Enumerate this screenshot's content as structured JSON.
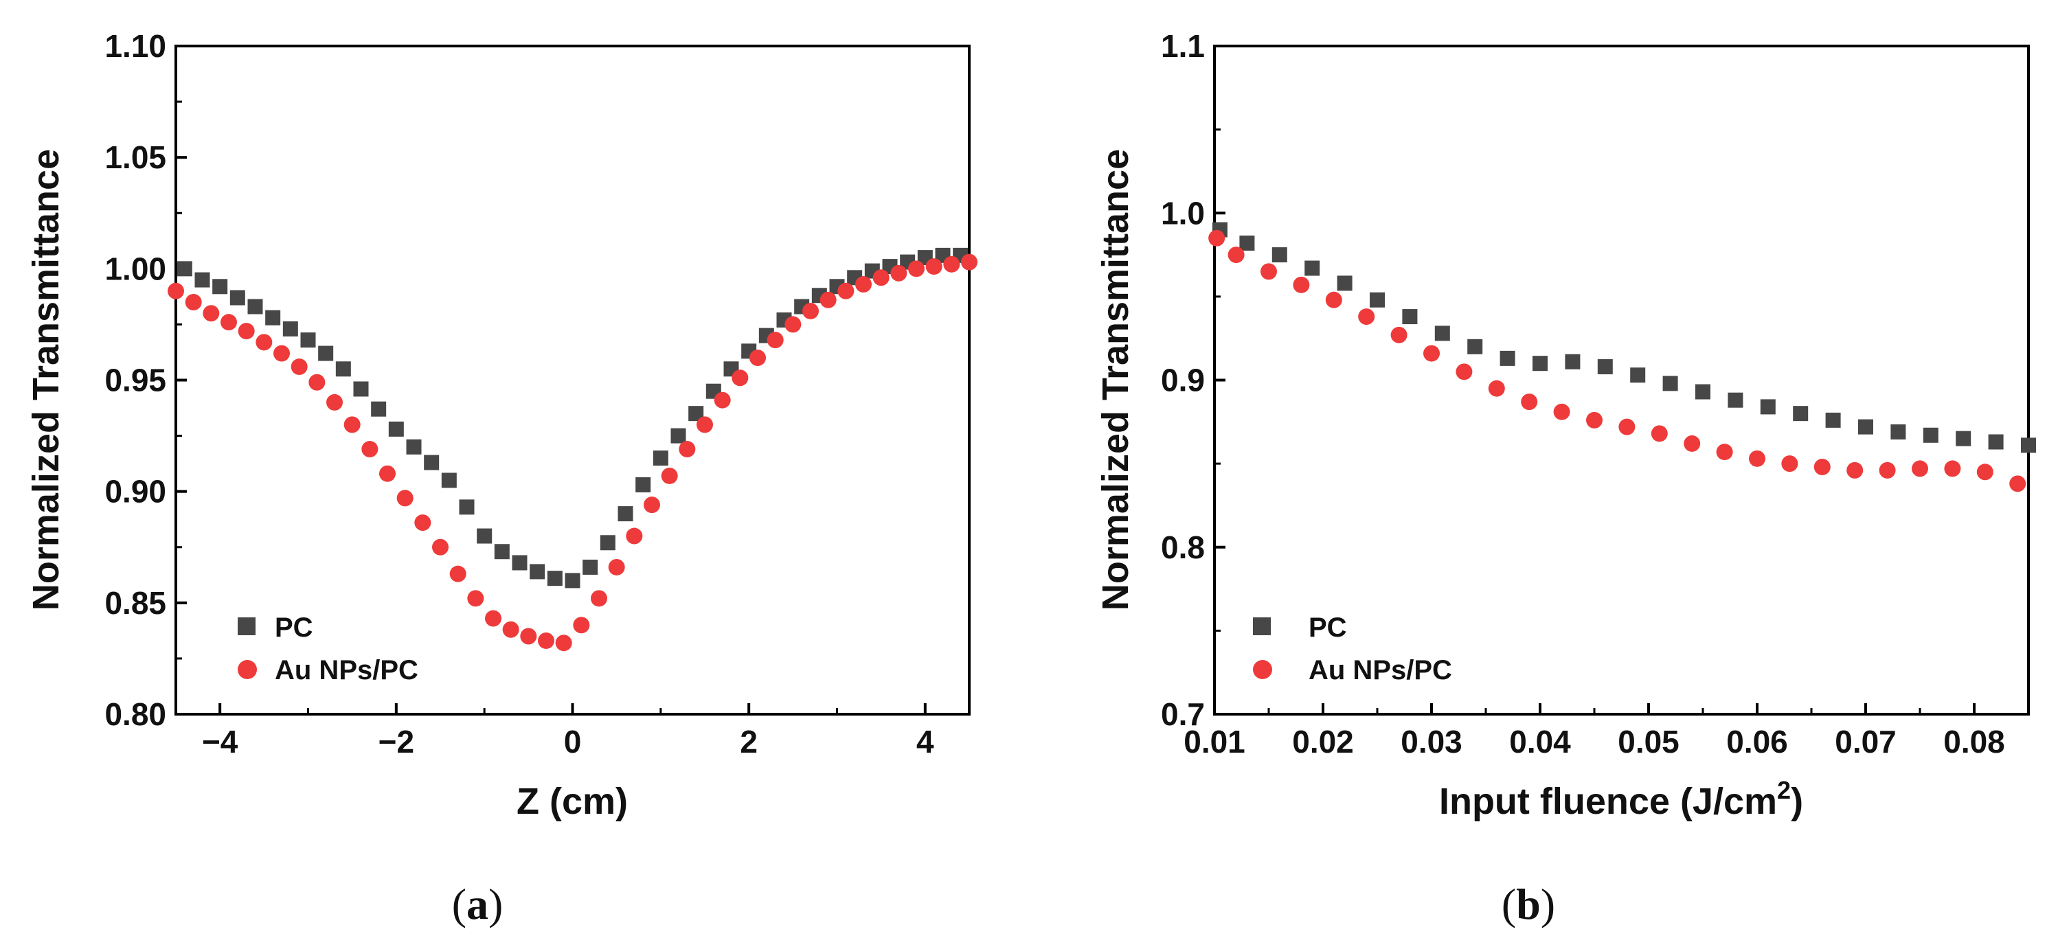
{
  "chart_data": [
    {
      "type": "scatter",
      "panel_label": "a",
      "xlabel": "Z (cm)",
      "ylabel": "Normalized Transmittance",
      "xlim": [
        -4.5,
        4.5
      ],
      "ylim": [
        0.8,
        1.1
      ],
      "xticks": [
        -4,
        -2,
        0,
        2,
        4
      ],
      "xtick_labels": [
        "−4",
        "−2",
        "0",
        "2",
        "4"
      ],
      "yticks": [
        0.8,
        0.85,
        0.9,
        0.95,
        1.0,
        1.05,
        1.1
      ],
      "ytick_labels": [
        "0.80",
        "0.85",
        "0.90",
        "0.95",
        "1.00",
        "1.05",
        "1.10"
      ],
      "legend_position": "bottom-left",
      "series": [
        {
          "name": "PC",
          "marker": "square",
          "color": "#474747",
          "x": [
            -4.4,
            -4.2,
            -4.0,
            -3.8,
            -3.6,
            -3.4,
            -3.2,
            -3.0,
            -2.8,
            -2.6,
            -2.4,
            -2.2,
            -2.0,
            -1.8,
            -1.6,
            -1.4,
            -1.2,
            -1.0,
            -0.8,
            -0.6,
            -0.4,
            -0.2,
            0.0,
            0.2,
            0.4,
            0.6,
            0.8,
            1.0,
            1.2,
            1.4,
            1.6,
            1.8,
            2.0,
            2.2,
            2.4,
            2.6,
            2.8,
            3.0,
            3.2,
            3.4,
            3.6,
            3.8,
            4.0,
            4.2,
            4.4
          ],
          "y": [
            1.0,
            0.995,
            0.992,
            0.987,
            0.983,
            0.978,
            0.973,
            0.968,
            0.962,
            0.955,
            0.946,
            0.937,
            0.928,
            0.92,
            0.913,
            0.905,
            0.893,
            0.88,
            0.873,
            0.868,
            0.864,
            0.861,
            0.86,
            0.866,
            0.877,
            0.89,
            0.903,
            0.915,
            0.925,
            0.935,
            0.945,
            0.955,
            0.963,
            0.97,
            0.977,
            0.983,
            0.988,
            0.992,
            0.996,
            0.999,
            1.001,
            1.003,
            1.005,
            1.006,
            1.006
          ]
        },
        {
          "name": "Au NPs/PC",
          "marker": "circle",
          "color": "#ee3a3a",
          "x": [
            -4.5,
            -4.3,
            -4.1,
            -3.9,
            -3.7,
            -3.5,
            -3.3,
            -3.1,
            -2.9,
            -2.7,
            -2.5,
            -2.3,
            -2.1,
            -1.9,
            -1.7,
            -1.5,
            -1.3,
            -1.1,
            -0.9,
            -0.7,
            -0.5,
            -0.3,
            -0.1,
            0.1,
            0.3,
            0.5,
            0.7,
            0.9,
            1.1,
            1.3,
            1.5,
            1.7,
            1.9,
            2.1,
            2.3,
            2.5,
            2.7,
            2.9,
            3.1,
            3.3,
            3.5,
            3.7,
            3.9,
            4.1,
            4.3,
            4.5
          ],
          "y": [
            0.99,
            0.985,
            0.98,
            0.976,
            0.972,
            0.967,
            0.962,
            0.956,
            0.949,
            0.94,
            0.93,
            0.919,
            0.908,
            0.897,
            0.886,
            0.875,
            0.863,
            0.852,
            0.843,
            0.838,
            0.835,
            0.833,
            0.832,
            0.84,
            0.852,
            0.866,
            0.88,
            0.894,
            0.907,
            0.919,
            0.93,
            0.941,
            0.951,
            0.96,
            0.968,
            0.975,
            0.981,
            0.986,
            0.99,
            0.993,
            0.996,
            0.998,
            1.0,
            1.001,
            1.002,
            1.003
          ]
        }
      ]
    },
    {
      "type": "scatter",
      "panel_label": "b",
      "xlabel": "Input  fluence (J/cm",
      "xlabel_sup": "2",
      "xlabel_end": ")",
      "ylabel": "Normalized Transmittance",
      "xlim": [
        0.01,
        0.085
      ],
      "ylim": [
        0.7,
        1.1
      ],
      "xticks": [
        0.01,
        0.02,
        0.03,
        0.04,
        0.05,
        0.06,
        0.07,
        0.08
      ],
      "xtick_labels": [
        "0.01",
        "0.02",
        "0.03",
        "0.04",
        "0.05",
        "0.06",
        "0.07",
        "0.08"
      ],
      "yticks": [
        0.7,
        0.8,
        0.9,
        1.0,
        1.1
      ],
      "ytick_labels": [
        "0.7",
        "0.8",
        "0.9",
        "1.0",
        "1.1"
      ],
      "legend_position": "bottom-left",
      "series": [
        {
          "name": "PC",
          "marker": "square",
          "color": "#474747",
          "x": [
            0.0105,
            0.013,
            0.016,
            0.019,
            0.022,
            0.025,
            0.028,
            0.031,
            0.034,
            0.037,
            0.04,
            0.043,
            0.046,
            0.049,
            0.052,
            0.055,
            0.058,
            0.061,
            0.064,
            0.067,
            0.07,
            0.073,
            0.076,
            0.079,
            0.082,
            0.085
          ],
          "y": [
            0.99,
            0.982,
            0.975,
            0.967,
            0.958,
            0.948,
            0.938,
            0.928,
            0.92,
            0.913,
            0.91,
            0.911,
            0.908,
            0.903,
            0.898,
            0.893,
            0.888,
            0.884,
            0.88,
            0.876,
            0.872,
            0.869,
            0.867,
            0.865,
            0.863,
            0.861
          ]
        },
        {
          "name": "Au NPs/PC",
          "marker": "circle",
          "color": "#ee3a3a",
          "x": [
            0.0102,
            0.012,
            0.015,
            0.018,
            0.021,
            0.024,
            0.027,
            0.03,
            0.033,
            0.036,
            0.039,
            0.042,
            0.045,
            0.048,
            0.051,
            0.054,
            0.057,
            0.06,
            0.063,
            0.066,
            0.069,
            0.072,
            0.075,
            0.078,
            0.081,
            0.084
          ],
          "y": [
            0.985,
            0.975,
            0.965,
            0.957,
            0.948,
            0.938,
            0.927,
            0.916,
            0.905,
            0.895,
            0.887,
            0.881,
            0.876,
            0.872,
            0.868,
            0.862,
            0.857,
            0.853,
            0.85,
            0.848,
            0.846,
            0.846,
            0.847,
            0.847,
            0.845,
            0.838
          ]
        }
      ]
    }
  ]
}
